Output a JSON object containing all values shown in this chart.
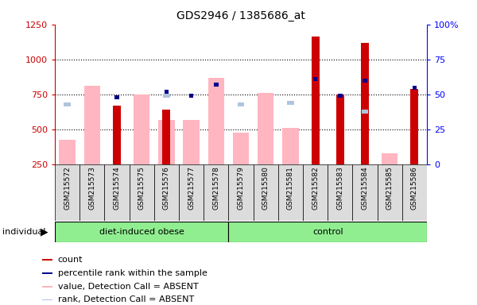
{
  "title": "GDS2946 / 1385686_at",
  "samples": [
    "GSM215572",
    "GSM215573",
    "GSM215574",
    "GSM215575",
    "GSM215576",
    "GSM215577",
    "GSM215578",
    "GSM215579",
    "GSM215580",
    "GSM215581",
    "GSM215582",
    "GSM215583",
    "GSM215584",
    "GSM215585",
    "GSM215586"
  ],
  "count_values": [
    null,
    null,
    670,
    null,
    640,
    null,
    null,
    null,
    null,
    null,
    1165,
    750,
    1120,
    null,
    790
  ],
  "percentile_values": [
    null,
    null,
    48,
    null,
    52,
    49,
    57,
    null,
    null,
    null,
    61,
    49,
    60,
    null,
    55
  ],
  "absent_value_bars": [
    430,
    810,
    null,
    750,
    570,
    570,
    870,
    480,
    760,
    510,
    null,
    null,
    null,
    330,
    null
  ],
  "absent_rank_bars": [
    43,
    null,
    null,
    null,
    49,
    null,
    null,
    43,
    null,
    44,
    null,
    null,
    38,
    null,
    null
  ],
  "ylim_left": [
    250,
    1250
  ],
  "ylim_right": [
    0,
    100
  ],
  "left_ticks": [
    250,
    500,
    750,
    1000,
    1250
  ],
  "right_ticks": [
    0,
    25,
    50,
    75,
    100
  ],
  "colors": {
    "count": "#CC0000",
    "percentile": "#00008B",
    "absent_value": "#FFB6C1",
    "absent_rank": "#B0C4DE"
  },
  "bg_color": "#DCDCDC",
  "plot_bg": "#FFFFFF",
  "group_color": "#90EE90"
}
